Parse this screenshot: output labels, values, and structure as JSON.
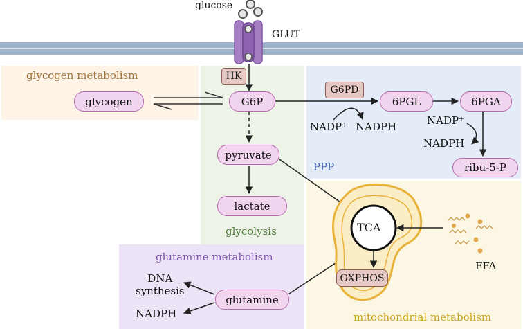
{
  "colors": {
    "glycogen_region": "#fdf3e6",
    "glycolysis_region": "#eef3e8",
    "ppp_region": "#e4ecf8",
    "glutamine_region": "#ece4f6",
    "mito_region": "#fcf7e4",
    "membrane": "#9fb3cc",
    "pill_fill": "#f1d5ee",
    "pill_border": "#b568ae",
    "enzyme_fill": "#e6c9c4",
    "glycogen_label": "#a0743a",
    "glycolysis_label": "#4e7b39",
    "ppp_label": "#3f5fa3",
    "glutamine_label": "#7a55a8",
    "mito_label": "#c9a21f"
  },
  "top": {
    "glucose": "glucose",
    "transporter": "GLUT"
  },
  "regions": {
    "glycogen": "glycogen metabolism",
    "glycolysis": "glycolysis",
    "ppp": "PPP",
    "glutamine": "glutamine metabolism",
    "mito": "mitochondrial metabolism"
  },
  "enzymes": {
    "hk": "HK",
    "g6pd": "G6PD"
  },
  "metabolites": {
    "glycogen": "glycogen",
    "g6p": "G6P",
    "pgl": "6PGL",
    "pga": "6PGA",
    "ribu": "ribu-5-P",
    "pyruvate": "pyruvate",
    "lactate": "lactate",
    "glutamine": "glutamine",
    "tca": "TCA",
    "oxphos": "OXPHOS"
  },
  "cofactors": {
    "nadp1": "NADP⁺",
    "nadph1": "NADPH",
    "nadp2": "NADP⁺",
    "nadph2": "NADPH",
    "dna": "DNA\nsynthesis",
    "nadph3": "NADPH",
    "ffa": "FFA"
  },
  "icons": [
    "glucose-molecule-icon",
    "glut-transporter-icon",
    "mitochondrion-icon",
    "fatty-acid-icon"
  ]
}
